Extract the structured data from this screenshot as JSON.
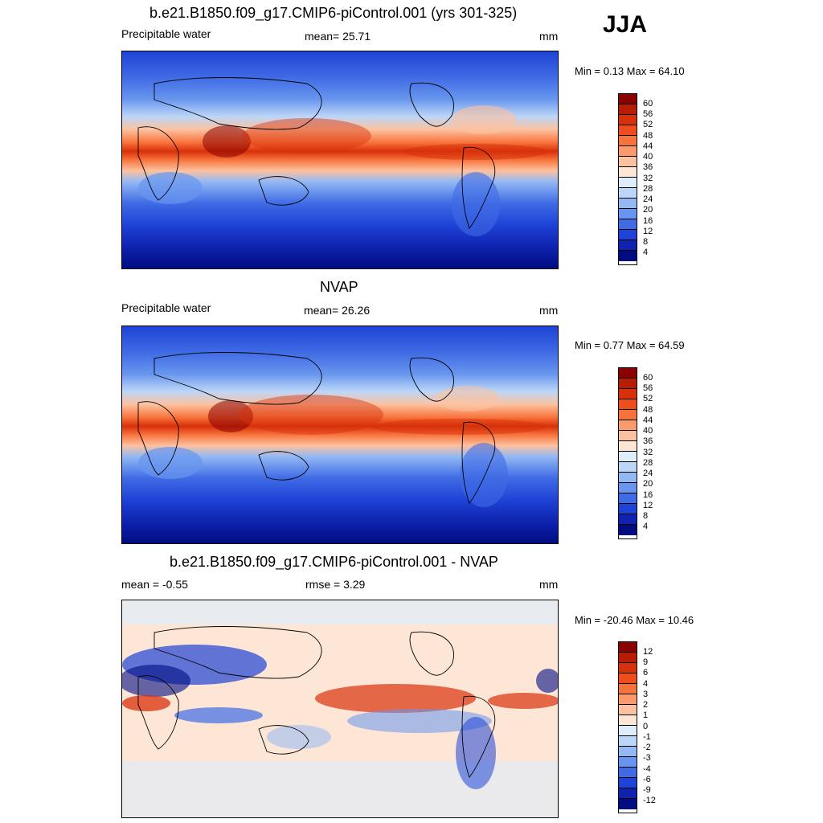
{
  "season": "JJA",
  "panels": [
    {
      "title": "b.e21.B1850.f09_g17.CMIP6-piControl.001 (yrs 301-325)",
      "left_label": "Precipitable water",
      "center_label": "mean=  25.71",
      "units": "mm",
      "minmax": "Min =   0.13 Max =  64.10",
      "colorbar": {
        "labels": [
          "60",
          "56",
          "52",
          "48",
          "44",
          "40",
          "36",
          "32",
          "28",
          "24",
          "20",
          "16",
          "12",
          "8",
          "4"
        ],
        "colors": [
          "#8b0000",
          "#b81d04",
          "#d8300a",
          "#ef4e1c",
          "#f8733c",
          "#fb9a6c",
          "#fcc2a0",
          "#fde6d6",
          "#deecfb",
          "#bcd6f8",
          "#93b9f4",
          "#6896ee",
          "#3f6be5",
          "#1e43d6",
          "#0f23b0",
          "#000c80"
        ]
      }
    },
    {
      "title": "NVAP",
      "left_label": "Precipitable water",
      "center_label": "mean=  26.26",
      "units": "mm",
      "minmax": "Min =   0.77 Max =  64.59",
      "colorbar": {
        "labels": [
          "60",
          "56",
          "52",
          "48",
          "44",
          "40",
          "36",
          "32",
          "28",
          "24",
          "20",
          "16",
          "12",
          "8",
          "4"
        ],
        "colors": [
          "#8b0000",
          "#b81d04",
          "#d8300a",
          "#ef4e1c",
          "#f8733c",
          "#fb9a6c",
          "#fcc2a0",
          "#fde6d6",
          "#deecfb",
          "#bcd6f8",
          "#93b9f4",
          "#6896ee",
          "#3f6be5",
          "#1e43d6",
          "#0f23b0",
          "#000c80"
        ]
      }
    },
    {
      "title": "b.e21.B1850.f09_g17.CMIP6-piControl.001 - NVAP",
      "left_label": "mean =  -0.55",
      "center_label": "rmse =   3.29",
      "units": "mm",
      "minmax": "Min = -20.46 Max =  10.46",
      "colorbar": {
        "labels": [
          "12",
          "9",
          "6",
          "4",
          "3",
          "2",
          "1",
          "0",
          "-1",
          "-2",
          "-3",
          "-4",
          "-6",
          "-9",
          "-12"
        ],
        "colors": [
          "#8b0000",
          "#b81d04",
          "#d8300a",
          "#ef4e1c",
          "#f8733c",
          "#fb9a6c",
          "#fcc2a0",
          "#fde6d6",
          "#deecfb",
          "#bcd6f8",
          "#93b9f4",
          "#6896ee",
          "#3f6be5",
          "#1e43d6",
          "#0f23b0",
          "#000c80"
        ]
      }
    }
  ],
  "chart_data": [
    {
      "type": "heatmap",
      "title": "b.e21.B1850.f09_g17.CMIP6-piControl.001 (yrs 301-325)",
      "variable": "Precipitable water",
      "units": "mm",
      "mean": 25.71,
      "min": 0.13,
      "max": 64.1,
      "contour_levels": [
        4,
        8,
        12,
        16,
        20,
        24,
        28,
        32,
        36,
        40,
        44,
        48,
        52,
        56,
        60
      ]
    },
    {
      "type": "heatmap",
      "title": "NVAP",
      "variable": "Precipitable water",
      "units": "mm",
      "mean": 26.26,
      "min": 0.77,
      "max": 64.59,
      "contour_levels": [
        4,
        8,
        12,
        16,
        20,
        24,
        28,
        32,
        36,
        40,
        44,
        48,
        52,
        56,
        60
      ]
    },
    {
      "type": "heatmap",
      "title": "b.e21.B1850.f09_g17.CMIP6-piControl.001 - NVAP",
      "units": "mm",
      "mean": -0.55,
      "rmse": 3.29,
      "min": -20.46,
      "max": 10.46,
      "contour_levels": [
        -12,
        -9,
        -6,
        -4,
        -3,
        -2,
        -1,
        0,
        1,
        2,
        3,
        4,
        6,
        9,
        12
      ]
    }
  ]
}
